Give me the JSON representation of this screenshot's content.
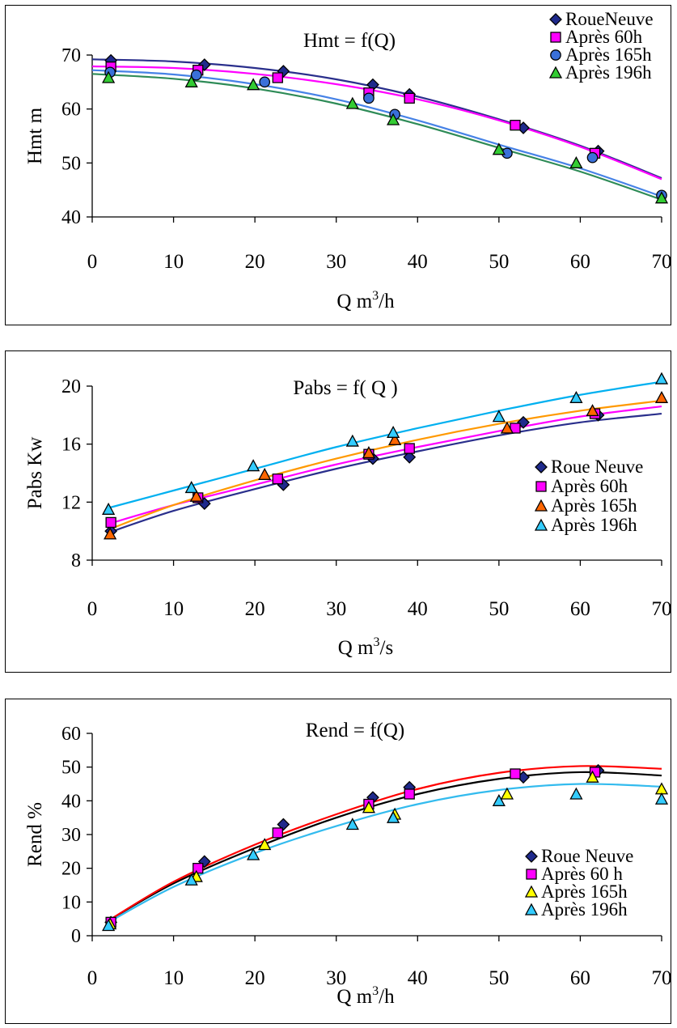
{
  "chart_data": [
    {
      "type": "scatter",
      "title": "Hmt = f(Q)",
      "xlabel": "Q  m",
      "xlabel_sup": "3",
      "xlabel_unit": "/h",
      "ylabel": "Hmt  m",
      "xlim": [
        0,
        70
      ],
      "ylim": [
        40,
        70
      ],
      "xticks": [
        0,
        10,
        20,
        30,
        40,
        50,
        60,
        70
      ],
      "yticks": [
        40,
        50,
        60,
        70
      ],
      "legend": "top-right",
      "series": [
        {
          "name": "RoueNeuve",
          "marker": "diamond",
          "color": "#1f2a8c",
          "line_color": "#2a2f8c",
          "x": [
            2.3,
            13.8,
            23.5,
            34.5,
            39,
            53,
            62.2
          ],
          "y": [
            69,
            68.2,
            67,
            64.5,
            62.7,
            56.5,
            52.2
          ],
          "fit": [
            [
              0,
              69.2
            ],
            [
              10,
              68.8
            ],
            [
              20,
              67.6
            ],
            [
              30,
              65.5
            ],
            [
              40,
              62.3
            ],
            [
              50,
              58.1
            ],
            [
              60,
              53.2
            ],
            [
              70,
              47.2
            ]
          ]
        },
        {
          "name": "Après 60h",
          "marker": "square",
          "color": "#ff00ff",
          "line_color": "#ff00ff",
          "x": [
            2.3,
            13,
            22.8,
            34,
            39,
            52,
            61.8
          ],
          "y": [
            67.8,
            67.2,
            65.8,
            63,
            62,
            57,
            51.8
          ],
          "fit": [
            [
              0,
              67.9
            ],
            [
              10,
              67.6
            ],
            [
              20,
              66.5
            ],
            [
              30,
              64.6
            ],
            [
              40,
              61.8
            ],
            [
              50,
              57.9
            ],
            [
              60,
              53
            ],
            [
              70,
              47
            ]
          ]
        },
        {
          "name": "Après 165h",
          "marker": "circle",
          "color": "#3a70d9",
          "line_color": "#4682e6",
          "x": [
            2.2,
            12.8,
            21.2,
            34,
            37.2,
            51,
            61.5,
            70
          ],
          "y": [
            66.8,
            66.3,
            65,
            62,
            59,
            51.8,
            51,
            44
          ],
          "fit": [
            [
              0,
              67.2
            ],
            [
              10,
              66.4
            ],
            [
              20,
              64.6
            ],
            [
              30,
              61.8
            ],
            [
              40,
              57.9
            ],
            [
              50,
              53.4
            ],
            [
              60,
              49
            ],
            [
              70,
              43.8
            ]
          ]
        },
        {
          "name": "Après 196h",
          "marker": "triangle",
          "color": "#33cc33",
          "line_color": "#2e8b57",
          "x": [
            2,
            12.2,
            19.8,
            32,
            37,
            50,
            59.5,
            70
          ],
          "y": [
            65.8,
            65,
            64.5,
            61,
            58,
            52.5,
            50,
            43.5
          ],
          "fit": [
            [
              0,
              66.5
            ],
            [
              10,
              65.6
            ],
            [
              20,
              63.8
            ],
            [
              30,
              61
            ],
            [
              40,
              57.2
            ],
            [
              50,
              52.8
            ],
            [
              60,
              48.4
            ],
            [
              70,
              43.2
            ]
          ]
        }
      ]
    },
    {
      "type": "scatter",
      "title": "Pabs = f( Q )",
      "xlabel": "Q m",
      "xlabel_sup": "3",
      "xlabel_unit": "/s",
      "ylabel": "Pabs  Kw",
      "xlim": [
        0,
        70
      ],
      "ylim": [
        8,
        20
      ],
      "xticks": [
        0,
        10,
        20,
        30,
        40,
        50,
        60,
        70
      ],
      "yticks": [
        8,
        12,
        16,
        20
      ],
      "legend": "right",
      "series": [
        {
          "name": "Roue Neuve",
          "marker": "diamond",
          "color": "#1f2a8c",
          "line_color": "#2a2f8c",
          "x": [
            2.3,
            13.8,
            23.5,
            34.5,
            39,
            53,
            62.2
          ],
          "y": [
            10,
            11.9,
            13.2,
            15,
            15.1,
            17.5,
            18
          ],
          "fit": [
            [
              2,
              9.9
            ],
            [
              10,
              11.4
            ],
            [
              20,
              12.9
            ],
            [
              30,
              14.3
            ],
            [
              40,
              15.5
            ],
            [
              50,
              16.6
            ],
            [
              60,
              17.5
            ],
            [
              70,
              18.1
            ]
          ]
        },
        {
          "name": "Après 60h",
          "marker": "square",
          "color": "#ff00ff",
          "line_color": "#ff00ff",
          "x": [
            2.3,
            13,
            22.8,
            34,
            39,
            52,
            61.8
          ],
          "y": [
            10.6,
            12.3,
            13.6,
            15.3,
            15.7,
            17.1,
            18.1
          ],
          "fit": [
            [
              2,
              10.5
            ],
            [
              10,
              11.8
            ],
            [
              20,
              13.2
            ],
            [
              30,
              14.6
            ],
            [
              40,
              15.8
            ],
            [
              50,
              16.9
            ],
            [
              60,
              17.9
            ],
            [
              70,
              18.6
            ]
          ]
        },
        {
          "name": "Après 165h",
          "marker": "triangle",
          "color": "#ff6600",
          "line_color": "#ff9900",
          "x": [
            2.2,
            12.8,
            21.2,
            34,
            37.2,
            51,
            61.5,
            70
          ],
          "y": [
            9.8,
            12.4,
            13.9,
            15.4,
            16.3,
            17.1,
            18.3,
            19.2
          ],
          "fit": [
            [
              2,
              10.1
            ],
            [
              10,
              11.8
            ],
            [
              20,
              13.5
            ],
            [
              30,
              15
            ],
            [
              40,
              16.3
            ],
            [
              50,
              17.4
            ],
            [
              60,
              18.3
            ],
            [
              70,
              19
            ]
          ]
        },
        {
          "name": "Après 196h",
          "marker": "triangle",
          "color": "#33ccff",
          "line_color": "#00b0f0",
          "x": [
            2,
            12.2,
            19.8,
            32,
            37,
            50,
            59.5,
            70
          ],
          "y": [
            11.5,
            13,
            14.5,
            16.2,
            16.8,
            17.9,
            19.2,
            20.5
          ],
          "fit": [
            [
              2,
              11.6
            ],
            [
              10,
              12.8
            ],
            [
              20,
              14.3
            ],
            [
              30,
              15.8
            ],
            [
              40,
              17.1
            ],
            [
              50,
              18.3
            ],
            [
              60,
              19.4
            ],
            [
              70,
              20.3
            ]
          ]
        }
      ]
    },
    {
      "type": "scatter",
      "title": "Rend = f(Q)",
      "xlabel": "Q m",
      "xlabel_sup": "3",
      "xlabel_unit": "/h",
      "ylabel": "Rend  %",
      "xlim": [
        0,
        70
      ],
      "ylim": [
        0,
        60
      ],
      "xticks": [
        0,
        10,
        20,
        30,
        40,
        50,
        60,
        70
      ],
      "yticks": [
        0,
        10,
        20,
        30,
        40,
        50,
        60
      ],
      "legend": "right",
      "series": [
        {
          "name": "Roue Neuve",
          "marker": "diamond",
          "color": "#1f2a8c",
          "line_color": "#000000",
          "x": [
            2.3,
            13.8,
            23.5,
            34.5,
            39,
            53,
            62.2
          ],
          "y": [
            4,
            22,
            33,
            41,
            44,
            47,
            49
          ],
          "fit": [
            [
              2,
              4.5
            ],
            [
              10,
              15.5
            ],
            [
              20,
              26
            ],
            [
              30,
              35
            ],
            [
              40,
              42
            ],
            [
              50,
              46.5
            ],
            [
              60,
              48.5
            ],
            [
              70,
              47.5
            ]
          ]
        },
        {
          "name": "Après 60 h",
          "marker": "square",
          "color": "#ff00ff",
          "line_color": "#ff0000",
          "x": [
            2.3,
            13,
            22.8,
            34,
            39,
            52,
            61.8
          ],
          "y": [
            4,
            20,
            30.5,
            39,
            42,
            48,
            48.5
          ],
          "fit": [
            [
              2,
              4.5
            ],
            [
              10,
              16
            ],
            [
              20,
              27
            ],
            [
              30,
              36
            ],
            [
              40,
              43.5
            ],
            [
              50,
              48.3
            ],
            [
              60,
              50.3
            ],
            [
              70,
              49.5
            ]
          ]
        },
        {
          "name": "Après 165h",
          "marker": "triangle",
          "color": "#ffff00",
          "line_color": "#ffff00",
          "x": [
            2.2,
            12.8,
            21.2,
            34,
            37.2,
            51,
            61.5,
            70
          ],
          "y": [
            3.5,
            17.5,
            27,
            38,
            36,
            42,
            47,
            43.5
          ],
          "fit": []
        },
        {
          "name": "Après 196h",
          "marker": "triangle",
          "color": "#33ccff",
          "line_color": "#33bbee",
          "x": [
            2,
            12.2,
            19.8,
            32,
            37,
            50,
            59.5,
            70
          ],
          "y": [
            3,
            16.5,
            24,
            33,
            35,
            40,
            42,
            40.5
          ],
          "fit": [
            [
              2,
              4
            ],
            [
              10,
              14.5
            ],
            [
              20,
              24.5
            ],
            [
              30,
              32.5
            ],
            [
              40,
              39
            ],
            [
              50,
              43.2
            ],
            [
              60,
              45
            ],
            [
              70,
              44.2
            ]
          ]
        }
      ]
    }
  ]
}
